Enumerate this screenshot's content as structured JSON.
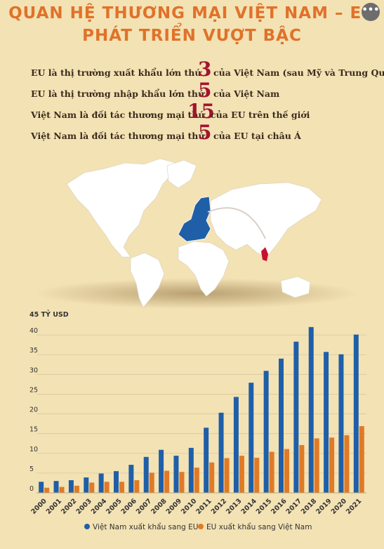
{
  "header": {
    "title_line1": "QUAN HỆ THƯƠNG MẠI VIỆT NAM – EU",
    "title_line2": "PHÁT TRIỂN VƯỢT BẬC",
    "more_label": "•••"
  },
  "facts": [
    {
      "pre": "EU là thị trường xuất khẩu lớn thứ",
      "num": "3",
      "post": "của Việt Nam (sau Mỹ và Trung Quốc)"
    },
    {
      "pre": "EU là thị trường nhập khẩu lớn thứ",
      "num": "5",
      "post": "của Việt Nam"
    },
    {
      "pre": "Việt Nam là đối tác thương mại thứ",
      "num": "15",
      "post": "của EU trên  thế giới"
    },
    {
      "pre": "Việt Nam là đối tác thương mại thứ",
      "num": "5",
      "post": "của EU tại châu Á"
    }
  ],
  "colors": {
    "blue": "#1f5fa8",
    "orange": "#e07a26",
    "eu_map": "#1f5fa8",
    "vietnam_map": "#c8102e"
  },
  "chart_data": {
    "type": "bar",
    "ylabel": "45 TỶ USD",
    "ylim": [
      0,
      45
    ],
    "yticks": [
      "0",
      "5",
      "10",
      "15",
      "20",
      "25",
      "30",
      "35",
      "40"
    ],
    "categories": [
      "2000",
      "2001",
      "2002",
      "2003",
      "2004",
      "2005",
      "2006",
      "2007",
      "2008",
      "2009",
      "2010",
      "2011",
      "2012",
      "2013",
      "2014",
      "2015",
      "2016",
      "2017",
      "2018",
      "2019",
      "2020",
      "2021"
    ],
    "series": [
      {
        "name": "Việt Nam xuất khẩu sang EU",
        "color": "#1f5fa8",
        "values": [
          2.8,
          3.0,
          3.2,
          3.9,
          4.9,
          5.5,
          7.1,
          9.1,
          10.9,
          9.4,
          11.4,
          16.5,
          20.3,
          24.3,
          27.9,
          30.9,
          34.0,
          38.3,
          42.0,
          35.7,
          35.1,
          40.1
        ]
      },
      {
        "name": "EU xuất khẩu sang Việt Nam",
        "color": "#e07a26",
        "values": [
          1.3,
          1.5,
          1.8,
          2.6,
          2.8,
          2.8,
          3.2,
          5.1,
          5.6,
          5.3,
          6.4,
          7.7,
          8.8,
          9.4,
          8.9,
          10.4,
          11.1,
          12.1,
          13.8,
          14.0,
          14.6,
          16.9
        ]
      }
    ],
    "grid": true,
    "legend": "bottom"
  }
}
